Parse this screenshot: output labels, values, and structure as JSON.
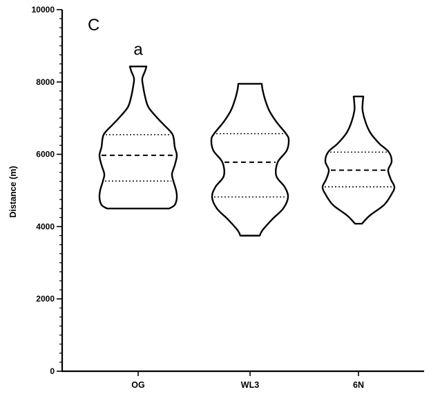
{
  "chart_data": {
    "type": "violin",
    "panel_label": "C",
    "ylabel": "Distance (m)",
    "ylim": [
      0,
      10000
    ],
    "yticks": [
      0,
      2000,
      4000,
      6000,
      8000,
      10000
    ],
    "yticks_text": [
      "0",
      "2000",
      "4000",
      "6000",
      "8000",
      "10000"
    ],
    "categories": [
      "OG",
      "WL3",
      "6N"
    ],
    "annotations": [
      {
        "category": "OG",
        "text": "a"
      }
    ],
    "series": [
      {
        "category": "OG",
        "min": 4500,
        "max": 8430,
        "q1": 5260,
        "median": 5970,
        "q3": 6540,
        "density": [
          [
            4500,
            45
          ],
          [
            4600,
            53
          ],
          [
            4800,
            56
          ],
          [
            5000,
            55
          ],
          [
            5260,
            51
          ],
          [
            5450,
            49
          ],
          [
            5700,
            53
          ],
          [
            5970,
            56
          ],
          [
            6200,
            53
          ],
          [
            6540,
            50
          ],
          [
            6800,
            38
          ],
          [
            7000,
            28
          ],
          [
            7300,
            15
          ],
          [
            7600,
            10
          ],
          [
            7900,
            7
          ],
          [
            8100,
            6
          ],
          [
            8300,
            10
          ],
          [
            8430,
            12
          ]
        ]
      },
      {
        "category": "WL3",
        "min": 3750,
        "max": 7950,
        "q1": 4820,
        "median": 5780,
        "q3": 6570,
        "density": [
          [
            3750,
            14
          ],
          [
            3900,
            18
          ],
          [
            4200,
            32
          ],
          [
            4500,
            48
          ],
          [
            4820,
            55
          ],
          [
            5100,
            50
          ],
          [
            5400,
            38
          ],
          [
            5780,
            40
          ],
          [
            6100,
            53
          ],
          [
            6400,
            56
          ],
          [
            6570,
            52
          ],
          [
            6900,
            38
          ],
          [
            7200,
            28
          ],
          [
            7500,
            22
          ],
          [
            7800,
            18
          ],
          [
            7950,
            17
          ]
        ]
      },
      {
        "category": "6N",
        "min": 4080,
        "max": 7600,
        "q1": 5100,
        "median": 5560,
        "q3": 6060,
        "density": [
          [
            4080,
            5
          ],
          [
            4300,
            16
          ],
          [
            4600,
            37
          ],
          [
            4900,
            48
          ],
          [
            5100,
            52
          ],
          [
            5300,
            47
          ],
          [
            5560,
            43
          ],
          [
            5800,
            48
          ],
          [
            6060,
            44
          ],
          [
            6300,
            30
          ],
          [
            6600,
            17
          ],
          [
            6900,
            10
          ],
          [
            7200,
            6
          ],
          [
            7400,
            6
          ],
          [
            7600,
            7
          ]
        ]
      }
    ]
  }
}
